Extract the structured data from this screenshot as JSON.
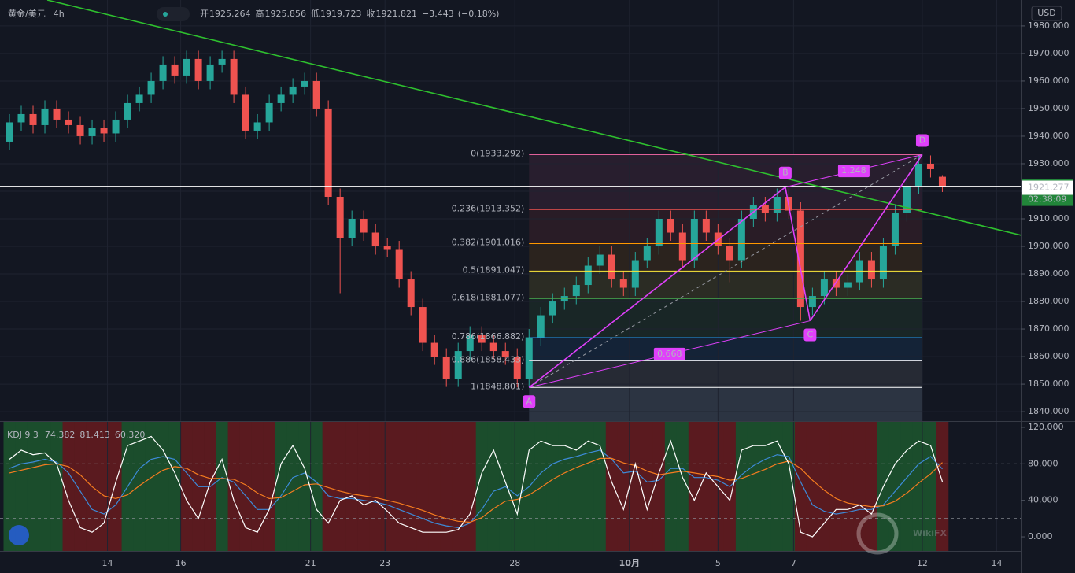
{
  "chart_data": [
    {
      "type": "candlestick",
      "title": "黄金/美元",
      "interval": "4h",
      "currency": "USD",
      "ohlc": {
        "open_label": "开",
        "open": 1925.264,
        "high_label": "高",
        "high": 1925.856,
        "low_label": "低",
        "low": 1919.723,
        "close_label": "收",
        "close": 1921.821,
        "change": {
          "value": -3.443,
          "label": "−3.443"
        },
        "change_pct": {
          "value": -0.18,
          "label": "(−0.18%)"
        }
      },
      "up_color": "#26a69a",
      "down_color": "#ef5350",
      "grid": true,
      "xlim": [
        -0.8,
        85.7
      ],
      "xticks": [
        {
          "value": 8.3,
          "label": "14"
        },
        {
          "value": 14.5,
          "label": "16"
        },
        {
          "value": 25.5,
          "label": "21"
        },
        {
          "value": 31.8,
          "label": "23"
        },
        {
          "value": 42.8,
          "label": "28"
        },
        {
          "value": 52.5,
          "label": "10月"
        },
        {
          "value": 60.0,
          "label": "5"
        },
        {
          "value": 66.4,
          "label": "7"
        },
        {
          "value": 77.3,
          "label": "12"
        },
        {
          "value": 83.6,
          "label": "14"
        }
      ],
      "ylim": [
        1836.6,
        1989.4
      ],
      "yticks": [
        {
          "value": 1840,
          "label": "1840.000"
        },
        {
          "value": 1850,
          "label": "1850.000"
        },
        {
          "value": 1860,
          "label": "1860.000"
        },
        {
          "value": 1870,
          "label": "1870.000"
        },
        {
          "value": 1880,
          "label": "1880.000"
        },
        {
          "value": 1890,
          "label": "1890.000"
        },
        {
          "value": 1900,
          "label": "1900.000"
        },
        {
          "value": 1910,
          "label": "1910.000"
        },
        {
          "value": 1920,
          "label": "1920.000"
        },
        {
          "value": 1930,
          "label": "1930.000"
        },
        {
          "value": 1940,
          "label": "1940.000"
        },
        {
          "value": 1950,
          "label": "1950.000"
        },
        {
          "value": 1960,
          "label": "1960.000"
        },
        {
          "value": 1970,
          "label": "1970.000"
        },
        {
          "value": 1980,
          "label": "1980.000"
        }
      ],
      "open": [
        1938,
        1945,
        1948,
        1944,
        1950,
        1946,
        1944,
        1940,
        1943,
        1941,
        1946,
        1952,
        1955,
        1960,
        1966,
        1962,
        1968,
        1960,
        1966,
        1968,
        1955,
        1942,
        1945,
        1952,
        1955,
        1958,
        1960,
        1950,
        1918,
        1903,
        1910,
        1905,
        1900,
        1899,
        1888,
        1878,
        1865,
        1860,
        1852,
        1862,
        1868,
        1865,
        1862,
        1860,
        1852,
        1867,
        1875,
        1880,
        1882,
        1886,
        1893,
        1897,
        1888,
        1885,
        1895,
        1900,
        1910,
        1905,
        1895,
        1910,
        1905,
        1900,
        1895,
        1910,
        1915,
        1912,
        1918,
        1913,
        1878,
        1882,
        1888,
        1885,
        1887,
        1895,
        1888,
        1900,
        1912,
        1922,
        1930,
        1925.264
      ],
      "high": [
        1948,
        1951,
        1951,
        1953,
        1953,
        1949,
        1947,
        1946,
        1946,
        1949,
        1955,
        1958,
        1963,
        1969,
        1969,
        1971,
        1971,
        1969,
        1971,
        1971,
        1958,
        1948,
        1955,
        1958,
        1961,
        1963,
        1963,
        1953,
        1921,
        1913,
        1913,
        1908,
        1903,
        1902,
        1891,
        1881,
        1868,
        1863,
        1865,
        1871,
        1871,
        1868,
        1865,
        1863,
        1870,
        1878,
        1883,
        1885,
        1889,
        1896,
        1900,
        1900,
        1891,
        1898,
        1903,
        1913,
        1913,
        1908,
        1913,
        1913,
        1908,
        1903,
        1913,
        1918,
        1918,
        1921,
        1921,
        1916,
        1885,
        1891,
        1891,
        1890,
        1898,
        1898,
        1903,
        1915,
        1925,
        1933.292,
        1933,
        1925.856
      ],
      "low": [
        1935,
        1942,
        1941,
        1941,
        1943,
        1941,
        1937,
        1937,
        1938,
        1938,
        1943,
        1949,
        1952,
        1957,
        1959,
        1959,
        1957,
        1957,
        1963,
        1952,
        1939,
        1939,
        1942,
        1949,
        1952,
        1955,
        1947,
        1915,
        1883,
        1900,
        1902,
        1897,
        1896,
        1885,
        1875,
        1862,
        1857,
        1849,
        1849,
        1859,
        1862,
        1859,
        1857,
        1848.801,
        1849,
        1864,
        1872,
        1877,
        1879,
        1883,
        1890,
        1885,
        1882,
        1882,
        1892,
        1897,
        1902,
        1892,
        1892,
        1902,
        1897,
        1887,
        1892,
        1907,
        1909,
        1909,
        1910,
        1873,
        1875,
        1879,
        1882,
        1882,
        1884,
        1885,
        1885,
        1897,
        1909,
        1919,
        1925,
        1919.723
      ],
      "close": [
        1945,
        1948,
        1944,
        1950,
        1946,
        1944,
        1940,
        1943,
        1941,
        1946,
        1952,
        1955,
        1960,
        1966,
        1962,
        1968,
        1960,
        1966,
        1968,
        1955,
        1942,
        1945,
        1952,
        1955,
        1958,
        1960,
        1950,
        1918,
        1903,
        1910,
        1905,
        1900,
        1899,
        1888,
        1878,
        1865,
        1860,
        1852,
        1862,
        1868,
        1865,
        1862,
        1860,
        1852,
        1867,
        1875,
        1880,
        1882,
        1886,
        1893,
        1897,
        1888,
        1885,
        1895,
        1900,
        1910,
        1905,
        1895,
        1910,
        1905,
        1900,
        1895,
        1910,
        1915,
        1912,
        1918,
        1913,
        1878,
        1882,
        1888,
        1885,
        1887,
        1895,
        1888,
        1900,
        1912,
        1922,
        1930,
        1928,
        1921.821
      ],
      "last_price": 1921.821,
      "last_price_color": "#22863a",
      "countdown": "02:38:09",
      "trendline": {
        "color": "#2ec02e",
        "x": [
          3.2,
          85.7
        ],
        "y": [
          1989.4,
          1904.0
        ],
        "value": 1921.277
      },
      "fibonacci": {
        "x": [
          44,
          77.3
        ],
        "levels": [
          {
            "ratio": 0,
            "value": 1933.292,
            "label": "0(1933.292)",
            "color": "#e0609a"
          },
          {
            "ratio": 0.236,
            "value": 1913.352,
            "label": "0.236(1913.352)",
            "color": "#f05350"
          },
          {
            "ratio": 0.382,
            "value": 1901.016,
            "label": "0.382(1901.016)",
            "color": "#ff9800"
          },
          {
            "ratio": 0.5,
            "value": 1891.047,
            "label": "0.5(1891.047)",
            "color": "#ffeb3b"
          },
          {
            "ratio": 0.618,
            "value": 1881.077,
            "label": "0.618(1881.077)",
            "color": "#4caf50"
          },
          {
            "ratio": 0.786,
            "value": 1866.882,
            "label": "0.786(1866.882)",
            "color": "#2196f3"
          },
          {
            "ratio": 0.886,
            "value": 1858.433,
            "label": "0.886(1858.433)",
            "color": "#d1d4dc"
          },
          {
            "ratio": 1,
            "value": 1848.801,
            "label": "1(1848.801)",
            "color": "#ffffff"
          }
        ],
        "below_color": "#5d6b7e"
      },
      "harmonic": {
        "color": "#e040fb",
        "points": [
          {
            "label": "A",
            "x": 44,
            "y": 1848.801
          },
          {
            "label": "B",
            "x": 65.7,
            "y": 1921.5
          },
          {
            "label": "C",
            "x": 67.8,
            "y": 1873
          },
          {
            "label": "D",
            "x": 77.3,
            "y": 1933.292
          }
        ],
        "ratios": [
          0.668,
          1.248
        ]
      }
    },
    {
      "type": "line",
      "title": "KDJ 9 3",
      "xlim": [
        -0.8,
        85.7
      ],
      "ylim": [
        -15.5,
        126
      ],
      "yticks": [
        {
          "value": 0,
          "label": "0.000"
        },
        {
          "value": 40,
          "label": "40.000"
        },
        {
          "value": 80,
          "label": "80.000"
        },
        {
          "value": 120,
          "label": "120.000"
        }
      ],
      "levels": [
        80,
        20
      ],
      "band_colors": [
        "#1b4d2c",
        "#5a1a1f"
      ],
      "readouts": [
        74.382,
        81.413,
        {
          "value": 60.32,
          "label": "60.320"
        }
      ],
      "series": [
        {
          "color": "#3d8bd9",
          "values": [
            75,
            80,
            82,
            85,
            82,
            70,
            50,
            30,
            25,
            35,
            55,
            75,
            85,
            88,
            85,
            70,
            55,
            55,
            65,
            60,
            45,
            30,
            30,
            45,
            65,
            70,
            60,
            45,
            42,
            42,
            40,
            38,
            35,
            30,
            25,
            20,
            15,
            12,
            10,
            15,
            30,
            50,
            55,
            45,
            55,
            70,
            80,
            85,
            88,
            92,
            95,
            85,
            70,
            72,
            60,
            62,
            75,
            75,
            65,
            65,
            62,
            55,
            68,
            78,
            85,
            90,
            88,
            60,
            35,
            28,
            25,
            27,
            30,
            30,
            35,
            50,
            65,
            80,
            88,
            74.382
          ]
        },
        {
          "color": "#f57c1f",
          "values": [
            70,
            73,
            76,
            79,
            80,
            77,
            68,
            55,
            45,
            42,
            46,
            56,
            65,
            73,
            77,
            75,
            68,
            64,
            64,
            63,
            57,
            48,
            42,
            43,
            50,
            57,
            58,
            54,
            50,
            47,
            45,
            43,
            40,
            37,
            33,
            29,
            24,
            20,
            17,
            16,
            21,
            31,
            39,
            41,
            46,
            54,
            63,
            70,
            76,
            81,
            86,
            86,
            81,
            78,
            72,
            68,
            70,
            72,
            70,
            68,
            66,
            62,
            64,
            69,
            74,
            80,
            83,
            75,
            62,
            51,
            42,
            37,
            35,
            33,
            34,
            39,
            48,
            59,
            69,
            81.413
          ]
        },
        {
          "color": "#ffffff",
          "values": [
            85,
            95,
            90,
            92,
            80,
            40,
            10,
            5,
            15,
            60,
            100,
            105,
            110,
            95,
            70,
            40,
            20,
            60,
            85,
            40,
            10,
            5,
            30,
            80,
            100,
            75,
            30,
            15,
            40,
            45,
            35,
            40,
            28,
            15,
            10,
            5,
            5,
            5,
            8,
            25,
            70,
            95,
            60,
            25,
            95,
            105,
            100,
            100,
            95,
            105,
            100,
            60,
            30,
            80,
            30,
            70,
            105,
            65,
            40,
            70,
            55,
            40,
            95,
            100,
            100,
            105,
            80,
            5,
            0,
            15,
            30,
            30,
            35,
            25,
            55,
            80,
            95,
            105,
            100,
            60.32
          ]
        }
      ]
    }
  ],
  "watermark": "WikiFX"
}
